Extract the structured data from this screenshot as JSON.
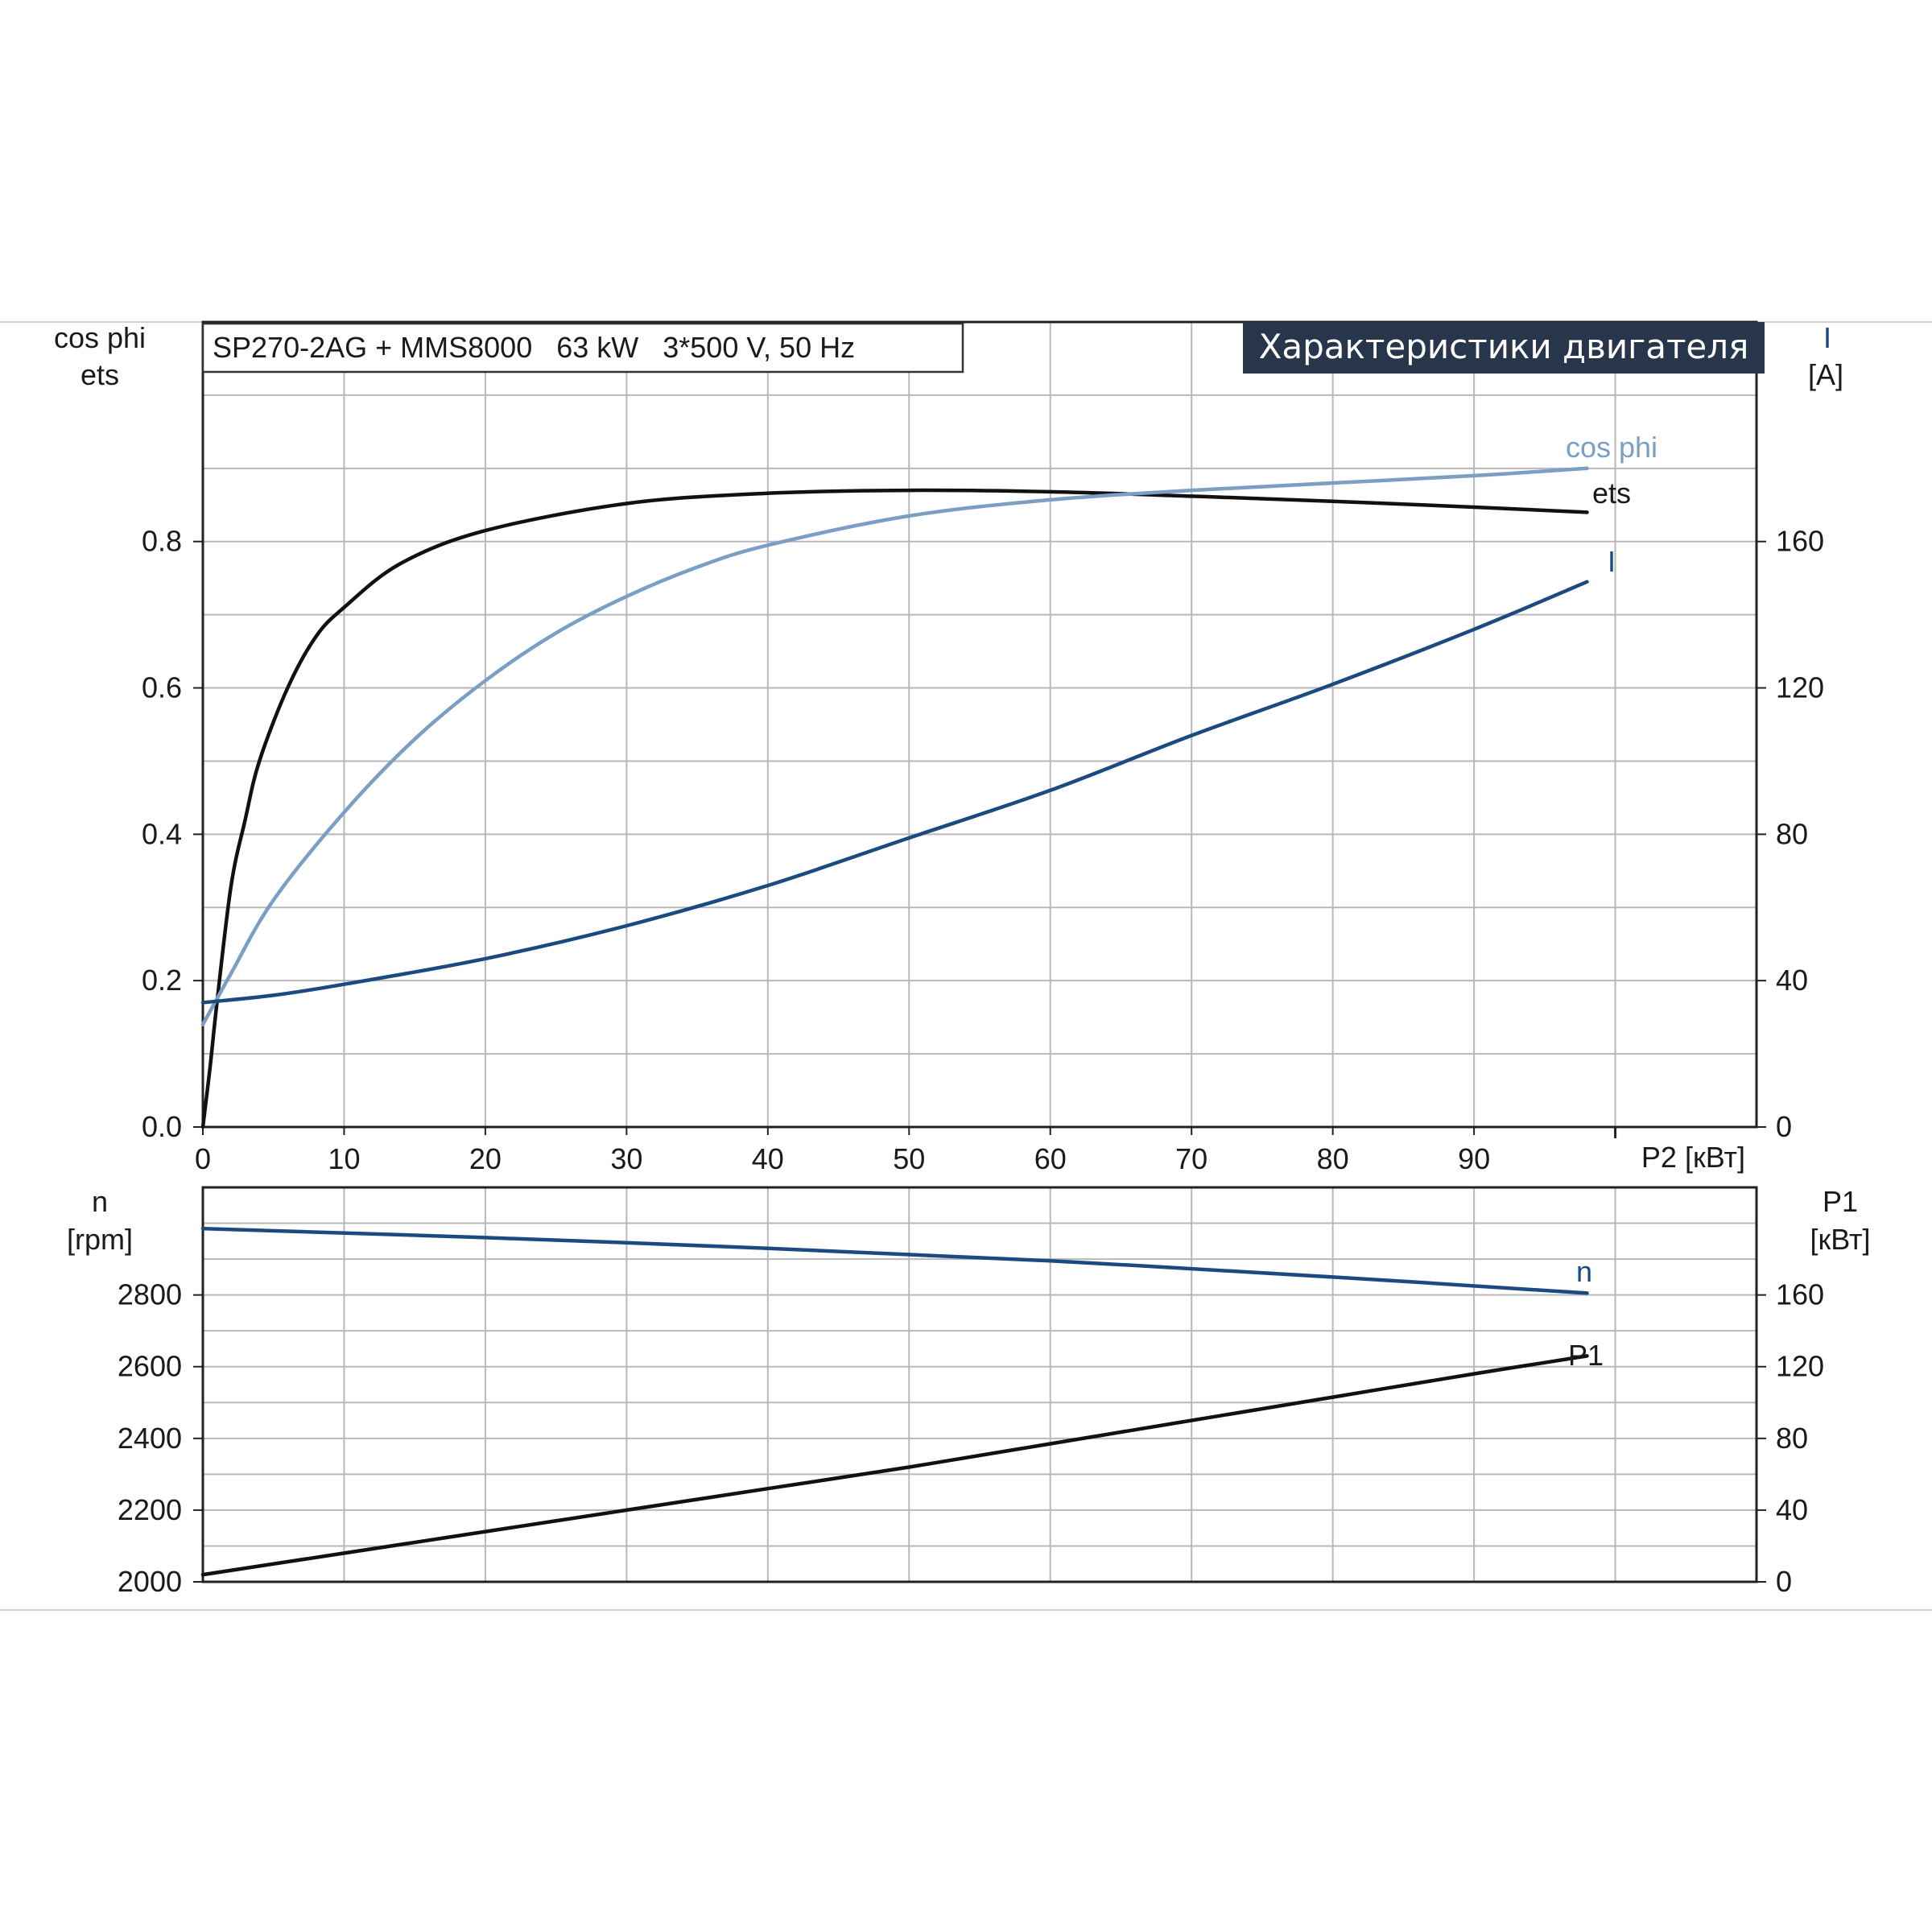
{
  "header": {
    "model": "SP270-2AG + MMS8000   63 kW   3*500 V, 50 Hz",
    "title": "Характеристики двигателя"
  },
  "colors": {
    "ets": "#111111",
    "cos_phi": "#7a9ec4",
    "I": "#1b4a80",
    "n": "#1b4a80",
    "P1": "#111111",
    "title_bg": "#27364a"
  },
  "chart_data": [
    {
      "type": "line",
      "xlabel": "P2 [кВт]",
      "xlim": [
        0,
        110
      ],
      "x_ticks": [
        "0",
        "10",
        "20",
        "30",
        "40",
        "50",
        "60",
        "70",
        "80",
        "90"
      ],
      "left_axis": {
        "label_line1": "cos phi",
        "label_line2": "ets",
        "ylim": [
          0,
          1.1
        ],
        "ticks": [
          "0.0",
          "0.2",
          "0.4",
          "0.6",
          "0.8"
        ]
      },
      "right_axis": {
        "label_line1": "I",
        "label_line2": "[A]",
        "ylim": [
          0,
          220
        ],
        "ticks": [
          "0",
          "40",
          "80",
          "120",
          "160"
        ]
      },
      "grid": true,
      "series": [
        {
          "name": "ets",
          "axis": "left",
          "x": [
            0,
            0.5,
            1,
            2,
            3,
            4,
            6,
            8,
            10,
            14,
            20,
            30,
            40,
            50,
            60,
            70,
            80,
            90,
            98
          ],
          "y": [
            0.0,
            0.08,
            0.17,
            0.33,
            0.42,
            0.5,
            0.6,
            0.67,
            0.71,
            0.77,
            0.815,
            0.852,
            0.866,
            0.87,
            0.868,
            0.862,
            0.855,
            0.847,
            0.84
          ]
        },
        {
          "name": "cos phi",
          "axis": "left",
          "x": [
            0,
            2,
            5,
            10,
            15,
            20,
            25,
            30,
            35,
            40,
            50,
            60,
            70,
            80,
            90,
            98
          ],
          "y": [
            0.14,
            0.21,
            0.31,
            0.43,
            0.53,
            0.61,
            0.675,
            0.725,
            0.765,
            0.795,
            0.835,
            0.857,
            0.87,
            0.88,
            0.89,
            0.9
          ]
        },
        {
          "name": "I",
          "axis": "right",
          "x": [
            0,
            5,
            10,
            20,
            30,
            40,
            50,
            60,
            70,
            80,
            90,
            98
          ],
          "y": [
            34,
            36,
            39,
            46,
            55,
            66,
            79,
            92,
            107,
            121,
            136,
            149
          ]
        }
      ]
    },
    {
      "type": "line",
      "xlim": [
        0,
        110
      ],
      "left_axis": {
        "label_line1": "n",
        "label_line2": "[rpm]",
        "ylim": [
          2000,
          3100
        ],
        "ticks": [
          "2000",
          "2200",
          "2400",
          "2600",
          "2800"
        ]
      },
      "right_axis": {
        "label_line1": "P1",
        "label_line2": "[кВт]",
        "ylim": [
          0,
          220
        ],
        "ticks": [
          "0",
          "40",
          "80",
          "120",
          "160"
        ]
      },
      "grid": true,
      "series": [
        {
          "name": "n",
          "axis": "left",
          "x": [
            0,
            20,
            40,
            60,
            80,
            98
          ],
          "y": [
            2985,
            2960,
            2930,
            2895,
            2850,
            2805
          ]
        },
        {
          "name": "P1",
          "axis": "right",
          "x": [
            0,
            10,
            20,
            30,
            40,
            50,
            60,
            70,
            80,
            90,
            98
          ],
          "y": [
            4,
            16,
            28,
            40,
            52,
            64,
            77,
            90,
            103,
            116,
            126
          ]
        }
      ]
    }
  ]
}
